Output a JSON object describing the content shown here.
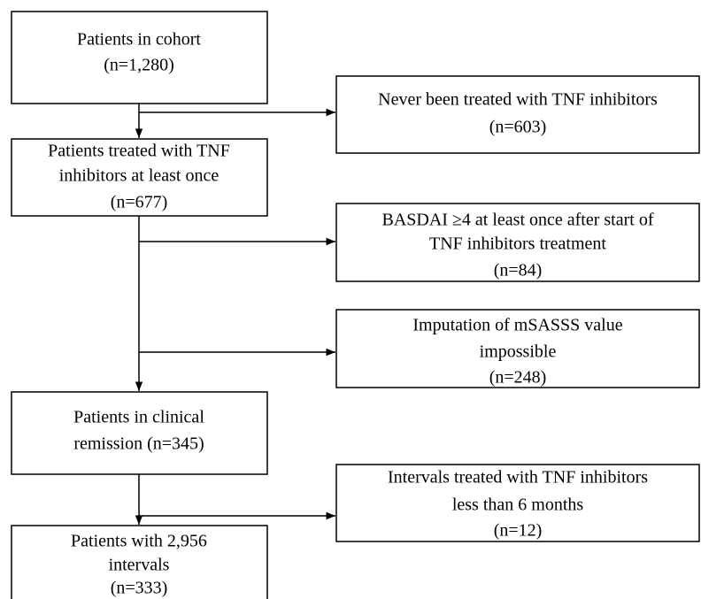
{
  "nodes": [
    {
      "lines": [
        "Patients in cohort",
        "(n=1,280)"
      ]
    },
    {
      "lines": [
        "Never been treated with TNF inhibitors",
        "(n=603)"
      ]
    },
    {
      "lines": [
        "Patients treated with TNF",
        "inhibitors at least once",
        "(n=677)"
      ]
    },
    {
      "lines": [
        "BASDAI ≥4 at least once after start of",
        "TNF inhibitors treatment",
        "(n=84)"
      ]
    },
    {
      "lines": [
        "Imputation of mSASSS value",
        "impossible",
        "(n=248)"
      ]
    },
    {
      "lines": [
        "Patients in clinical",
        "remission (n=345)"
      ]
    },
    {
      "lines": [
        "Intervals treated with TNF inhibitors",
        "less than 6 months",
        "(n=12)"
      ]
    },
    {
      "lines": [
        "Patients with 2,956",
        "intervals",
        "(n=333)"
      ]
    }
  ]
}
